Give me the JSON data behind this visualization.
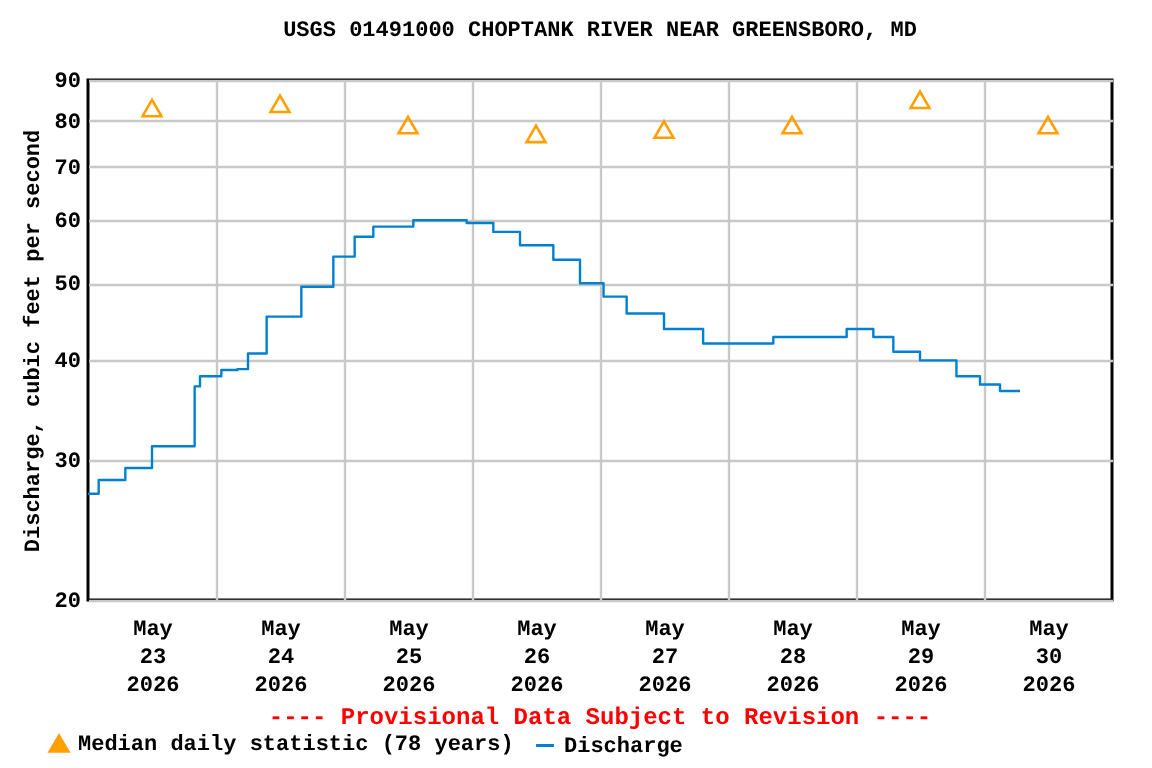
{
  "chart_data": {
    "type": "line",
    "title": "USGS 01491000 CHOPTANK RIVER NEAR GREENSBORO, MD",
    "ylabel": "Discharge, cubic feet per second",
    "annotations": [
      "---- Provisional Data Subject to Revision ----"
    ],
    "log": "y",
    "grid": true,
    "legend": "bottom",
    "ylim": [
      20,
      90
    ],
    "yticks": [
      20,
      30,
      40,
      50,
      60,
      70,
      80,
      90
    ],
    "xlim": [
      "2026-05-23",
      "2026-05-31"
    ],
    "xticks": [
      {
        "value": "2026-05-23T12:00",
        "label": "May 23 2026"
      },
      {
        "value": "2026-05-24",
        "label": null
      },
      {
        "value": "2026-05-24T12:00",
        "label": "May 24 2026"
      },
      {
        "value": "2026-05-25",
        "label": null
      },
      {
        "value": "2026-05-25T12:00",
        "label": "May 25 2026"
      },
      {
        "value": "2026-05-26",
        "label": null
      },
      {
        "value": "2026-05-26T12:00",
        "label": "May 26 2026"
      },
      {
        "value": "2026-05-27",
        "label": null
      },
      {
        "value": "2026-05-27T12:00",
        "label": "May 27 2026"
      },
      {
        "value": "2026-05-28",
        "label": null
      },
      {
        "value": "2026-05-28T12:00",
        "label": "May 28 2026"
      },
      {
        "value": "2026-05-29",
        "label": null
      },
      {
        "value": "2026-05-29T12:00",
        "label": "May 29 2026"
      },
      {
        "value": "2026-05-30",
        "label": null
      },
      {
        "value": "2026-05-30T12:00",
        "label": "May 30 2026"
      }
    ],
    "series": [
      {
        "name": "Median daily statistic (78 years)",
        "type": "scatter",
        "marker": "triangle",
        "color": "#ffa000",
        "x": [
          "2026-05-23T12:00",
          "2026-05-24T12:00",
          "2026-05-25T12:00",
          "2026-05-26T12:00",
          "2026-05-27T12:00",
          "2026-05-28T12:00",
          "2026-05-29T12:00",
          "2026-05-30T12:00"
        ],
        "values": [
          83,
          84,
          79,
          77,
          78,
          79,
          85,
          79
        ]
      },
      {
        "name": "Discharge",
        "type": "step",
        "line_style": "solid",
        "color": "#0080d0",
        "x": [
          "2026-05-23T00:00",
          "2026-05-23T02:00",
          "2026-05-23T07:00",
          "2026-05-23T12:00",
          "2026-05-23T20:00",
          "2026-05-23T21:00",
          "2026-05-24T01:00",
          "2026-05-24T04:00",
          "2026-05-24T06:00",
          "2026-05-24T09:30",
          "2026-05-24T16:00",
          "2026-05-24T22:00",
          "2026-05-25T02:00",
          "2026-05-25T05:30",
          "2026-05-25T13:00",
          "2026-05-25T23:00",
          "2026-05-26T04:00",
          "2026-05-26T09:00",
          "2026-05-26T15:15",
          "2026-05-26T20:15",
          "2026-05-27T00:40",
          "2026-05-27T05:00",
          "2026-05-27T12:00",
          "2026-05-27T19:20",
          "2026-05-28T08:30",
          "2026-05-28T22:15",
          "2026-05-29T03:15",
          "2026-05-29T07:00",
          "2026-05-29T12:00",
          "2026-05-29T18:50",
          "2026-05-29T23:15",
          "2026-05-30T03:00",
          "2026-05-30T06:45"
        ],
        "values": [
          27.2,
          28.3,
          29.3,
          31.2,
          37.1,
          38.2,
          38.9,
          39,
          40.8,
          45.4,
          49.5,
          54,
          57.2,
          58.9,
          60,
          59.5,
          58,
          55.8,
          53.5,
          50,
          48.1,
          45.8,
          43.8,
          42,
          42.8,
          43.8,
          42.8,
          41,
          40,
          38.2,
          37.3,
          36.6,
          36.6
        ]
      }
    ]
  }
}
